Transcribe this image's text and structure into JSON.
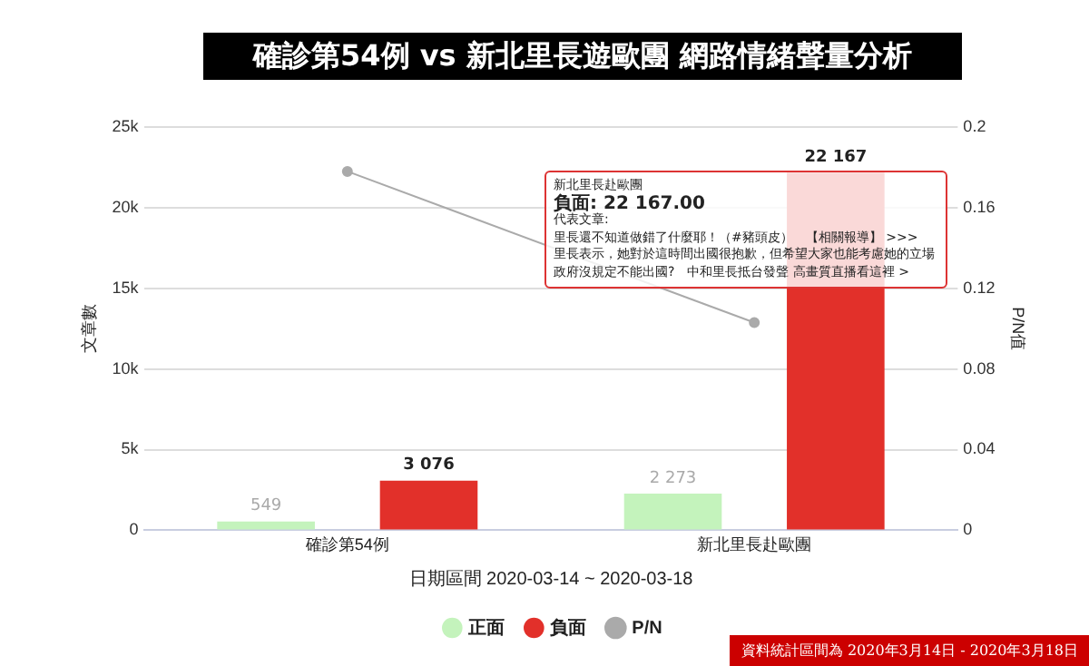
{
  "chart_data": {
    "type": "bar",
    "title": "確診第54例 vs 新北里長遊歐團 網路情緒聲量分析",
    "xlabel": "日期區間 2020-03-14 ~ 2020-03-18",
    "ylabel": "文章數",
    "y2label": "P/N值",
    "categories": [
      "確診第54例",
      "新北里長赴歐團"
    ],
    "series": [
      {
        "name": "正面",
        "color": "#c4f3bc",
        "values": [
          549,
          2273
        ],
        "value_labels": [
          "549",
          "2 273"
        ]
      },
      {
        "name": "負面",
        "color": "#e2302a",
        "values": [
          3076,
          22167
        ],
        "value_labels": [
          "3 076",
          "22 167"
        ]
      },
      {
        "name": "P/N",
        "type": "line",
        "axis": "y2",
        "color": "#aaaaaa",
        "values": [
          0.178,
          0.103
        ]
      }
    ],
    "ylim": [
      0,
      25000
    ],
    "yticks": [
      0,
      {
        "value": 5000,
        "label": "5k"
      },
      {
        "value": 10000,
        "label": "10k"
      },
      {
        "value": 15000,
        "label": "15k"
      },
      {
        "value": 20000,
        "label": "20k"
      },
      {
        "value": 25000,
        "label": "25k"
      }
    ],
    "y2lim": [
      0,
      0.2
    ],
    "y2ticks": [
      0,
      0.04,
      0.08,
      0.12,
      0.16,
      0.2
    ],
    "grid": "y",
    "legend": "bottom",
    "marker": "circle",
    "annotations": [
      "新北里長赴歐團",
      "負面: 22 167.00",
      "代表文章:",
      "里長還不知道做錯了什麼耶！（#豬頭皮）　【相關報導】 >>>",
      "里長表示，她對於這時間出國很抱歉，但希望大家也能考慮她的立場",
      "政府沒規定不能出國?　中和里長抵台發聲 高畫質直播看這裡 >",
      "資料統計區間為 2020年3月14日 - 2020年3月18日"
    ]
  }
}
